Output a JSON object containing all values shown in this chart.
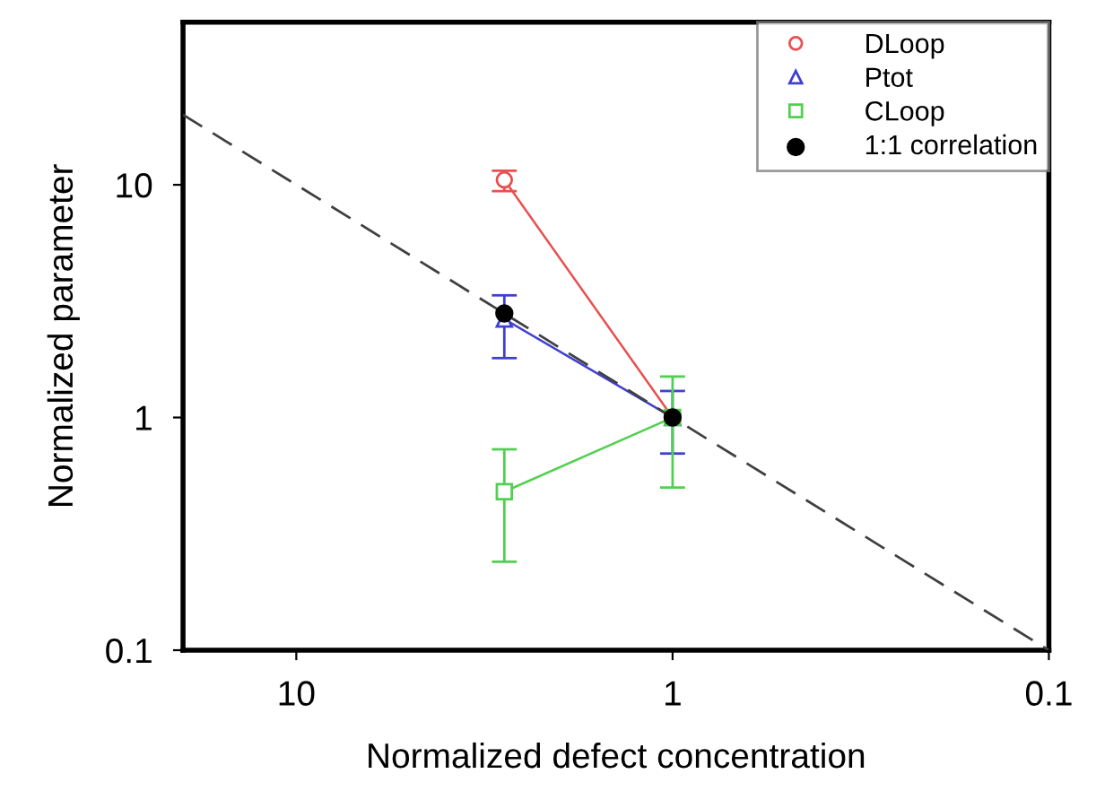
{
  "chart_data": {
    "type": "line",
    "xlabel": "Normalized defect concentration",
    "ylabel": "Normalized parameter",
    "log": "xy",
    "xlim": [
      20,
      0.1
    ],
    "xticks": [
      10,
      1,
      0.1
    ],
    "ylim": [
      0.1,
      50
    ],
    "yticks": [
      0.1,
      1,
      10
    ],
    "grid": false,
    "legend": "top right",
    "series": [
      {
        "name": "DLoop",
        "color": "#e85050",
        "marker": "circle",
        "x": [
          2.8,
          1
        ],
        "values": [
          10.5,
          1
        ],
        "errors": [
          [
            9.4,
            11.5
          ],
          null
        ]
      },
      {
        "name": "Ptot",
        "color": "#4040d0",
        "marker": "triangle",
        "x": [
          2.8,
          1
        ],
        "values": [
          2.65,
          1
        ],
        "errors": [
          [
            1.8,
            3.35
          ],
          [
            0.7,
            1.3
          ]
        ]
      },
      {
        "name": "CLoop",
        "color": "#50d050",
        "marker": "square",
        "x": [
          2.8,
          1
        ],
        "values": [
          0.48,
          1
        ],
        "errors": [
          [
            0.24,
            0.73
          ],
          [
            0.5,
            1.5
          ]
        ]
      },
      {
        "name": "1:1 correlation",
        "type": "scatter",
        "color": "#000000",
        "marker": "circle",
        "x": [
          2.8,
          1
        ],
        "values": [
          2.8,
          1
        ]
      },
      {
        "color": "#404040",
        "marker": "none",
        "line_style": "dashed",
        "x": [
          20,
          0.1
        ],
        "values": [
          20,
          0.1
        ]
      }
    ]
  }
}
